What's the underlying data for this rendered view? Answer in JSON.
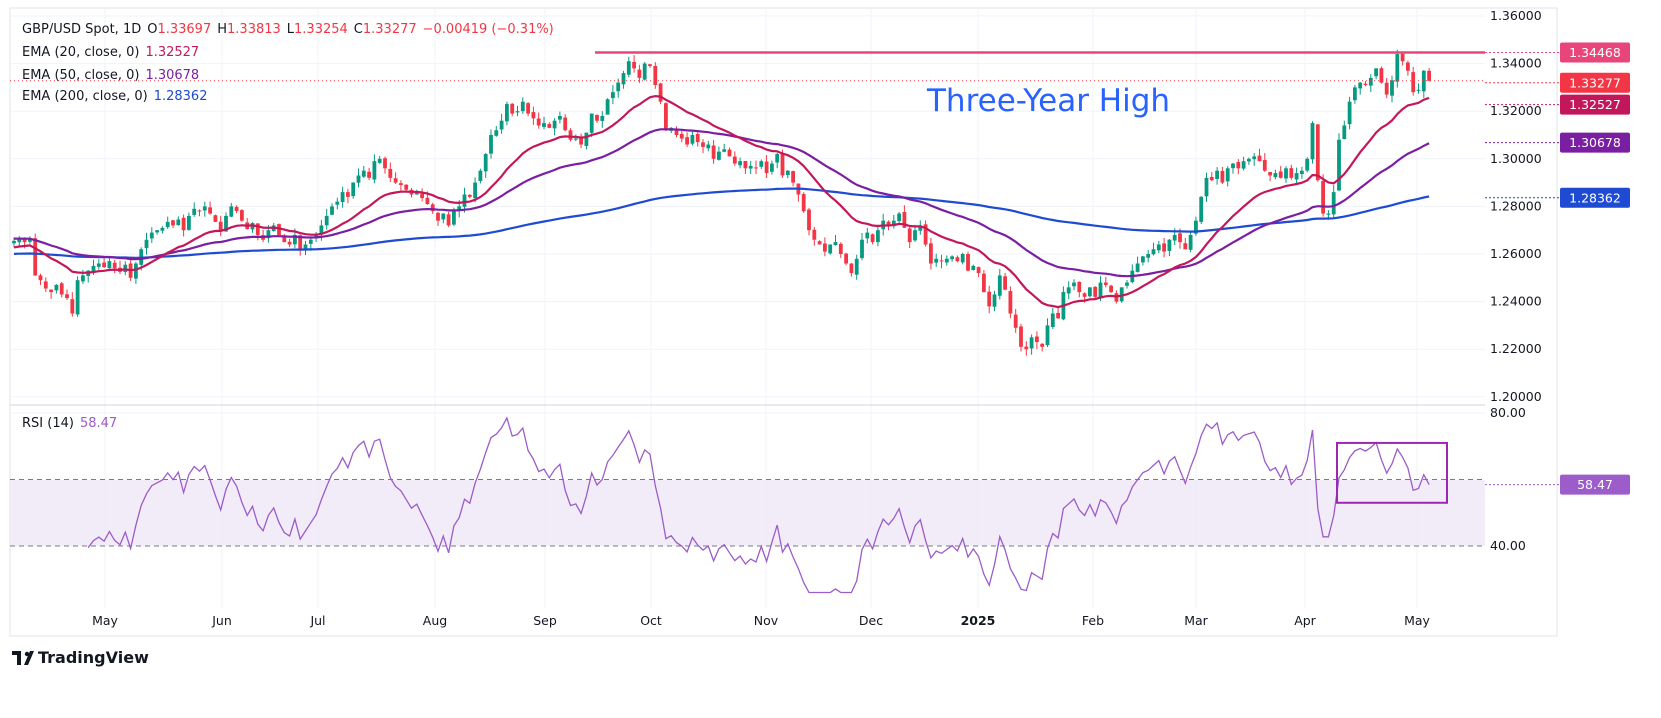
{
  "header": {
    "symbol": "GBP/USD Spot, 1D",
    "ohlc": {
      "o_label": "O",
      "o": "1.33697",
      "h_label": "H",
      "h": "1.33813",
      "l_label": "L",
      "l": "1.33254",
      "c_label": "C",
      "c": "1.33277",
      "change": "−0.00419 (−0.31%)"
    },
    "ema20": {
      "label": "EMA (20, close, 0)",
      "value": "1.32527"
    },
    "ema50": {
      "label": "EMA (50, close, 0)",
      "value": "1.30678"
    },
    "ema200": {
      "label": "EMA (200, close, 0)",
      "value": "1.28362"
    },
    "rsi": {
      "label": "RSI (14)",
      "value": "58.47"
    }
  },
  "footer": {
    "brand": "TradingView"
  },
  "colors": {
    "up": "#089981",
    "down": "#f23645",
    "ema20": "#c2185b",
    "ema50": "#7b1fa2",
    "ema200": "#1e4bd2",
    "resistance": "#e8457a",
    "rsi": "#9c5cc9",
    "annotation": "#2962ff",
    "rsi_box": "#9c27b0"
  },
  "chart_data": [
    {
      "type": "candlestick",
      "title": "GBP/USD Spot, 1D",
      "ylim": [
        1.2,
        1.36
      ],
      "grid": true,
      "y_ticks": [
        "1.36000",
        "1.34000",
        "1.32000",
        "1.30000",
        "1.28000",
        "1.26000",
        "1.24000",
        "1.22000",
        "1.20000"
      ],
      "x_ticks": [
        "May",
        "Jun",
        "Jul",
        "Aug",
        "Sep",
        "Oct",
        "Nov",
        "Dec",
        "2025",
        "Feb",
        "Mar",
        "Apr",
        "May"
      ],
      "last_candle": {
        "open": 1.33697,
        "high": 1.33813,
        "low": 1.33254,
        "close": 1.33277
      },
      "closes": [
        1.2655,
        1.2668,
        1.265,
        1.2662,
        1.251,
        1.249,
        1.2455,
        1.244,
        1.247,
        1.243,
        1.2415,
        1.235,
        1.249,
        1.251,
        1.253,
        1.255,
        1.256,
        1.2545,
        1.257,
        1.254,
        1.2525,
        1.2555,
        1.25,
        1.256,
        1.262,
        1.266,
        1.269,
        1.27,
        1.271,
        1.2735,
        1.272,
        1.2745,
        1.27,
        1.276,
        1.279,
        1.278,
        1.28,
        1.277,
        1.2735,
        1.27,
        1.276,
        1.28,
        1.278,
        1.274,
        1.2705,
        1.273,
        1.268,
        1.266,
        1.27,
        1.272,
        1.268,
        1.265,
        1.264,
        1.268,
        1.262,
        1.264,
        1.266,
        1.268,
        1.272,
        1.276,
        1.28,
        1.282,
        1.286,
        1.284,
        1.29,
        1.293,
        1.295,
        1.292,
        1.299,
        1.3,
        1.296,
        1.292,
        1.29,
        1.289,
        1.287,
        1.285,
        1.286,
        1.2835,
        1.281,
        1.278,
        1.274,
        1.277,
        1.272,
        1.278,
        1.28,
        1.285,
        1.284,
        1.29,
        1.295,
        1.302,
        1.31,
        1.312,
        1.316,
        1.323,
        1.319,
        1.32,
        1.324,
        1.319,
        1.317,
        1.314,
        1.315,
        1.313,
        1.316,
        1.318,
        1.312,
        1.308,
        1.3085,
        1.306,
        1.311,
        1.319,
        1.316,
        1.318,
        1.325,
        1.328,
        1.332,
        1.336,
        1.341,
        1.338,
        1.334,
        1.34,
        1.339,
        1.331,
        1.324,
        1.312,
        1.313,
        1.31,
        1.3085,
        1.306,
        1.31,
        1.307,
        1.305,
        1.306,
        1.3,
        1.303,
        1.304,
        1.301,
        1.298,
        1.299,
        1.296,
        1.297,
        1.296,
        1.299,
        1.294,
        1.298,
        1.302,
        1.293,
        1.295,
        1.29,
        1.285,
        1.278,
        1.27,
        1.266,
        1.264,
        1.261,
        1.264,
        1.265,
        1.26,
        1.256,
        1.252,
        1.258,
        1.266,
        1.269,
        1.265,
        1.27,
        1.274,
        1.272,
        1.274,
        1.277,
        1.271,
        1.265,
        1.27,
        1.272,
        1.264,
        1.256,
        1.258,
        1.257,
        1.258,
        1.259,
        1.257,
        1.26,
        1.253,
        1.255,
        1.252,
        1.244,
        1.238,
        1.243,
        1.251,
        1.245,
        1.235,
        1.229,
        1.221,
        1.22,
        1.225,
        1.223,
        1.221,
        1.23,
        1.235,
        1.233,
        1.244,
        1.246,
        1.248,
        1.244,
        1.242,
        1.246,
        1.242,
        1.248,
        1.247,
        1.244,
        1.24,
        1.246,
        1.248,
        1.253,
        1.256,
        1.259,
        1.26,
        1.262,
        1.264,
        1.261,
        1.266,
        1.268,
        1.265,
        1.262,
        1.268,
        1.274,
        1.284,
        1.292,
        1.291,
        1.295,
        1.29,
        1.296,
        1.298,
        1.296,
        1.299,
        1.3,
        1.301,
        1.299,
        1.295,
        1.293,
        1.294,
        1.292,
        1.296,
        1.292,
        1.294,
        1.295,
        1.3,
        1.315,
        1.291,
        1.277,
        1.277,
        1.286,
        1.308,
        1.314,
        1.324,
        1.33,
        1.332,
        1.331,
        1.334,
        1.338,
        1.332,
        1.327,
        1.333,
        1.344,
        1.341,
        1.337,
        1.328,
        1.329,
        1.337,
        1.33277
      ],
      "ema_start": {
        "ema20": 1.2625,
        "ema50": 1.2665,
        "ema200": 1.26
      },
      "overlays": {
        "resistance": {
          "value": 1.34468,
          "label": "1.34468"
        },
        "annotation": "Three-Year High",
        "current_price": {
          "value": 1.33277,
          "label": "1.33277"
        },
        "ema20_last": {
          "value": 1.32527,
          "label": "1.32527"
        },
        "ema50_last": {
          "value": 1.30678,
          "label": "1.30678"
        },
        "ema200_last": {
          "value": 1.28362,
          "label": "1.28362"
        }
      }
    },
    {
      "type": "line",
      "title": "RSI (14)",
      "ylim": [
        25,
        85
      ],
      "y_ticks": [
        "80.00",
        "40.00"
      ],
      "levels": [
        60,
        40
      ],
      "last_value": {
        "value": 58.47,
        "label": "58.47"
      },
      "highlight_box": {
        "from_label": "Apr",
        "to_label": "May",
        "rsi_range": [
          53,
          71
        ]
      }
    }
  ]
}
